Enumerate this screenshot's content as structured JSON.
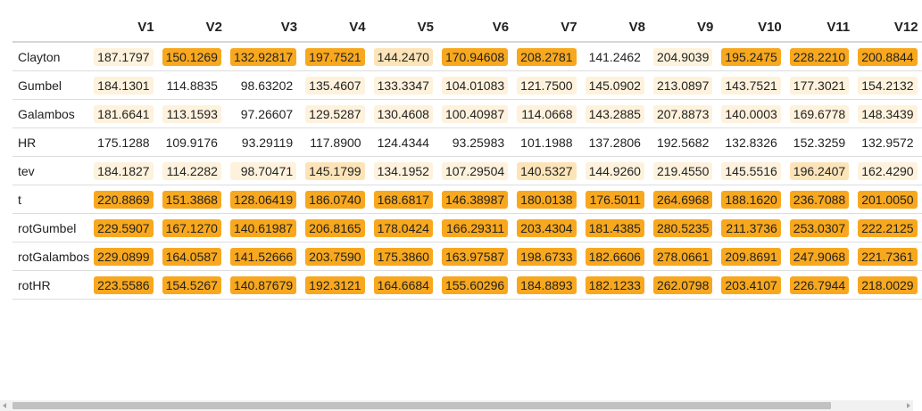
{
  "colors": {
    "level0": "#ffffff",
    "level1": "#fef2dd",
    "level2": "#fde4b8",
    "level3": "#fbc565",
    "level4": "#f8a81e"
  },
  "columns": [
    "",
    "V1",
    "V2",
    "V3",
    "V4",
    "V5",
    "V6",
    "V7",
    "V8",
    "V9",
    "V10",
    "V11",
    "V12"
  ],
  "rows": [
    {
      "name": "Clayton",
      "cells": [
        {
          "v": "187.1797",
          "l": 1
        },
        {
          "v": "150.1269",
          "l": 4
        },
        {
          "v": "132.92817",
          "l": 4
        },
        {
          "v": "197.7521",
          "l": 4
        },
        {
          "v": "144.2470",
          "l": 2
        },
        {
          "v": "170.94608",
          "l": 4
        },
        {
          "v": "208.2781",
          "l": 4
        },
        {
          "v": "141.2462",
          "l": 0
        },
        {
          "v": "204.9039",
          "l": 1
        },
        {
          "v": "195.2475",
          "l": 4
        },
        {
          "v": "228.2210",
          "l": 4
        },
        {
          "v": "200.8844",
          "l": 4
        }
      ]
    },
    {
      "name": "Gumbel",
      "cells": [
        {
          "v": "184.1301",
          "l": 1
        },
        {
          "v": "114.8835",
          "l": 0
        },
        {
          "v": "98.63202",
          "l": 0
        },
        {
          "v": "135.4607",
          "l": 1
        },
        {
          "v": "133.3347",
          "l": 1
        },
        {
          "v": "104.01083",
          "l": 1
        },
        {
          "v": "121.7500",
          "l": 1
        },
        {
          "v": "145.0902",
          "l": 1
        },
        {
          "v": "213.0897",
          "l": 1
        },
        {
          "v": "143.7521",
          "l": 1
        },
        {
          "v": "177.3021",
          "l": 1
        },
        {
          "v": "154.2132",
          "l": 1
        }
      ]
    },
    {
      "name": "Galambos",
      "cells": [
        {
          "v": "181.6641",
          "l": 1
        },
        {
          "v": "113.1593",
          "l": 1
        },
        {
          "v": "97.26607",
          "l": 0
        },
        {
          "v": "129.5287",
          "l": 1
        },
        {
          "v": "130.4608",
          "l": 1
        },
        {
          "v": "100.40987",
          "l": 1
        },
        {
          "v": "114.0668",
          "l": 1
        },
        {
          "v": "143.2885",
          "l": 1
        },
        {
          "v": "207.8873",
          "l": 1
        },
        {
          "v": "140.0003",
          "l": 1
        },
        {
          "v": "169.6778",
          "l": 1
        },
        {
          "v": "148.3439",
          "l": 1
        }
      ]
    },
    {
      "name": "HR",
      "cells": [
        {
          "v": "175.1288",
          "l": 0
        },
        {
          "v": "109.9176",
          "l": 0
        },
        {
          "v": "93.29119",
          "l": 0
        },
        {
          "v": "117.8900",
          "l": 0
        },
        {
          "v": "124.4344",
          "l": 0
        },
        {
          "v": "93.25983",
          "l": 0
        },
        {
          "v": "101.1988",
          "l": 0
        },
        {
          "v": "137.2806",
          "l": 0
        },
        {
          "v": "192.5682",
          "l": 0
        },
        {
          "v": "132.8326",
          "l": 0
        },
        {
          "v": "152.3259",
          "l": 0
        },
        {
          "v": "132.9572",
          "l": 0
        }
      ]
    },
    {
      "name": "tev",
      "cells": [
        {
          "v": "184.1827",
          "l": 1
        },
        {
          "v": "114.2282",
          "l": 1
        },
        {
          "v": "98.70471",
          "l": 1
        },
        {
          "v": "145.1799",
          "l": 2
        },
        {
          "v": "134.1952",
          "l": 1
        },
        {
          "v": "107.29504",
          "l": 1
        },
        {
          "v": "140.5327",
          "l": 2
        },
        {
          "v": "144.9260",
          "l": 1
        },
        {
          "v": "219.4550",
          "l": 1
        },
        {
          "v": "145.5516",
          "l": 1
        },
        {
          "v": "196.2407",
          "l": 2
        },
        {
          "v": "162.4290",
          "l": 1
        }
      ]
    },
    {
      "name": "t",
      "cells": [
        {
          "v": "220.8869",
          "l": 4
        },
        {
          "v": "151.3868",
          "l": 4
        },
        {
          "v": "128.06419",
          "l": 4
        },
        {
          "v": "186.0740",
          "l": 4
        },
        {
          "v": "168.6817",
          "l": 4
        },
        {
          "v": "146.38987",
          "l": 4
        },
        {
          "v": "180.0138",
          "l": 4
        },
        {
          "v": "176.5011",
          "l": 4
        },
        {
          "v": "264.6968",
          "l": 4
        },
        {
          "v": "188.1620",
          "l": 4
        },
        {
          "v": "236.7088",
          "l": 4
        },
        {
          "v": "201.0050",
          "l": 4
        }
      ]
    },
    {
      "name": "rotGumbel",
      "cells": [
        {
          "v": "229.5907",
          "l": 4
        },
        {
          "v": "167.1270",
          "l": 4
        },
        {
          "v": "140.61987",
          "l": 4
        },
        {
          "v": "206.8165",
          "l": 4
        },
        {
          "v": "178.0424",
          "l": 4
        },
        {
          "v": "166.29311",
          "l": 4
        },
        {
          "v": "203.4304",
          "l": 4
        },
        {
          "v": "181.4385",
          "l": 4
        },
        {
          "v": "280.5235",
          "l": 4
        },
        {
          "v": "211.3736",
          "l": 4
        },
        {
          "v": "253.0307",
          "l": 4
        },
        {
          "v": "222.2125",
          "l": 4
        }
      ]
    },
    {
      "name": "rotGalambos",
      "cells": [
        {
          "v": "229.0899",
          "l": 4
        },
        {
          "v": "164.0587",
          "l": 4
        },
        {
          "v": "141.52666",
          "l": 4
        },
        {
          "v": "203.7590",
          "l": 4
        },
        {
          "v": "175.3860",
          "l": 4
        },
        {
          "v": "163.97587",
          "l": 4
        },
        {
          "v": "198.6733",
          "l": 4
        },
        {
          "v": "182.6606",
          "l": 4
        },
        {
          "v": "278.0661",
          "l": 4
        },
        {
          "v": "209.8691",
          "l": 4
        },
        {
          "v": "247.9068",
          "l": 4
        },
        {
          "v": "221.7361",
          "l": 4
        }
      ]
    },
    {
      "name": "rotHR",
      "cells": [
        {
          "v": "223.5586",
          "l": 4
        },
        {
          "v": "154.5267",
          "l": 4
        },
        {
          "v": "140.87679",
          "l": 4
        },
        {
          "v": "192.3121",
          "l": 4
        },
        {
          "v": "164.6684",
          "l": 4
        },
        {
          "v": "155.60296",
          "l": 4
        },
        {
          "v": "184.8893",
          "l": 4
        },
        {
          "v": "182.1233",
          "l": 4
        },
        {
          "v": "262.0798",
          "l": 4
        },
        {
          "v": "203.4107",
          "l": 4
        },
        {
          "v": "226.7944",
          "l": 4
        },
        {
          "v": "218.0029",
          "l": 4
        }
      ]
    }
  ]
}
